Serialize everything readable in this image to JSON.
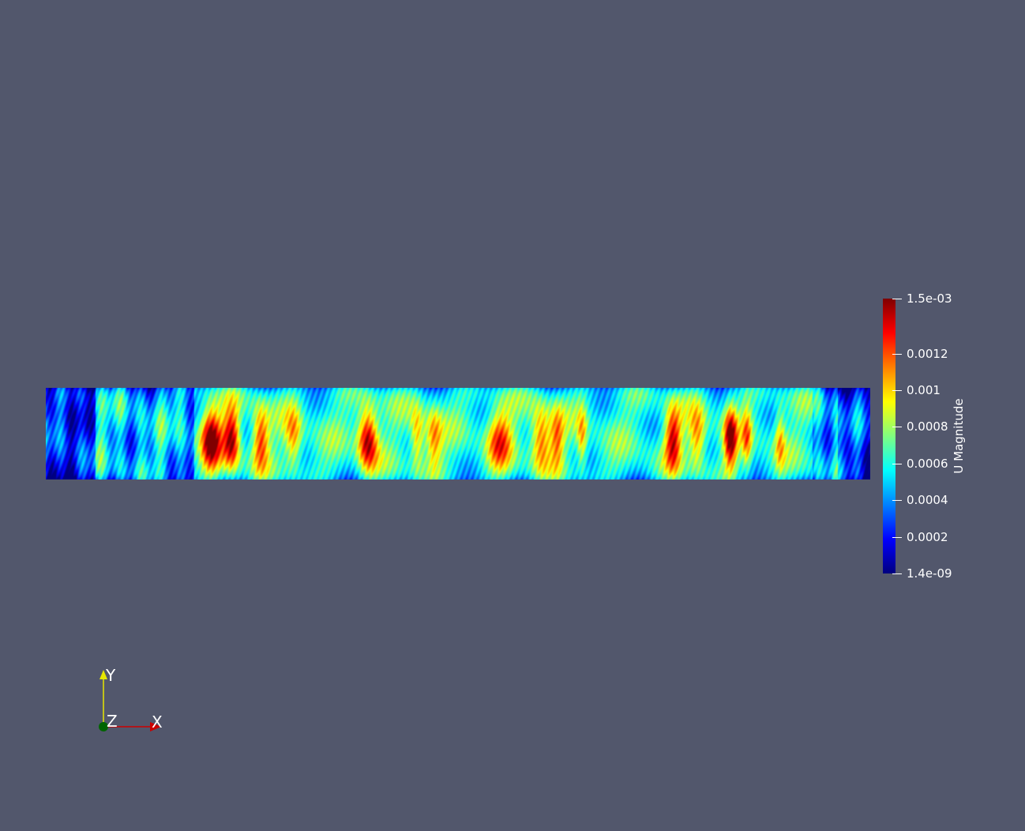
{
  "viewport": {
    "background": "#52576c"
  },
  "field": {
    "variable": "U Magnitude",
    "colormap": "jet",
    "range": [
      1.4e-09,
      0.0015
    ]
  },
  "colorbar": {
    "title": "U Magnitude",
    "colors": [
      "#00007f",
      "#0000ff",
      "#0080ff",
      "#00ffff",
      "#80ff80",
      "#ffff00",
      "#ff8000",
      "#ff0000",
      "#7f0000"
    ],
    "ticks": [
      {
        "value": 0.0015,
        "label": "1.5e-03"
      },
      {
        "value": 0.0012,
        "label": "0.0012"
      },
      {
        "value": 0.001,
        "label": "0.001"
      },
      {
        "value": 0.0008,
        "label": "0.0008"
      },
      {
        "value": 0.0006,
        "label": "0.0006"
      },
      {
        "value": 0.0004,
        "label": "0.0004"
      },
      {
        "value": 0.0002,
        "label": "0.0002"
      },
      {
        "value": 1.4e-09,
        "label": "1.4e-09"
      }
    ]
  },
  "orientation_axes": {
    "x_label": "X",
    "y_label": "Y",
    "z_label": "Z",
    "x_color": "#cc0000",
    "y_color": "#e6e600",
    "z_color": "#006400"
  }
}
